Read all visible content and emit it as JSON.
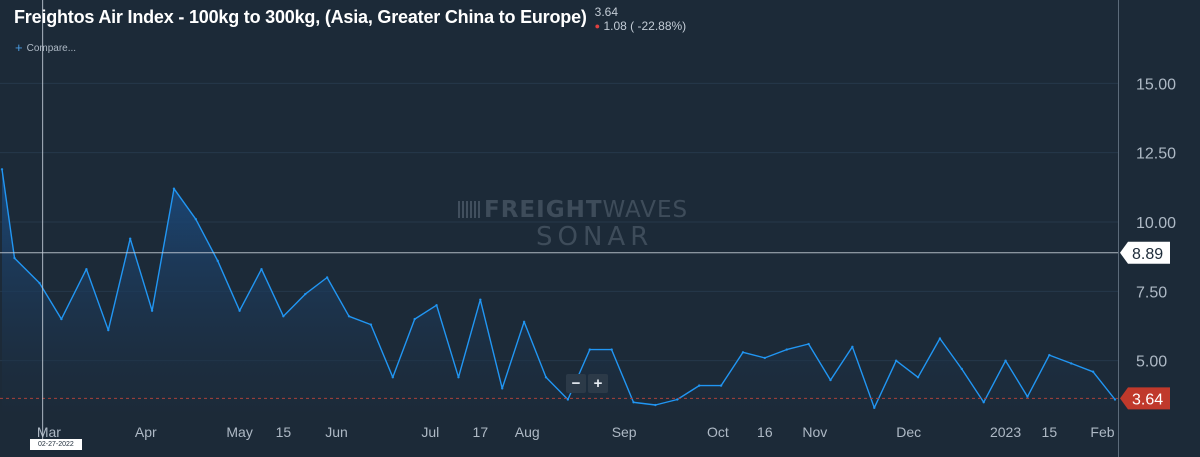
{
  "header": {
    "title": "Freightos Air Index - 100kg to 300kg, (Asia, Greater China to Europe)",
    "last_price": "3.64",
    "change": "1.08 ( -22.88%)",
    "compare_label": "Compare..."
  },
  "watermark": {
    "brand_bold": "FREIGHT",
    "brand_light": "WAVES",
    "product": "SONAR"
  },
  "controls": {
    "zoom_out": "−",
    "zoom_in": "+"
  },
  "crosshair": {
    "date_label": "02-27-2022",
    "value_label": "8.89"
  },
  "colors": {
    "background": "#1c2a38",
    "line": "#2196f3",
    "area_top": "#1b4a7e",
    "last_price_tag": "#c0392b",
    "gridline": "#26384a"
  },
  "chart_data": {
    "type": "area",
    "title": "Freightos Air Index - 100kg to 300kg, (Asia, Greater China to Europe)",
    "ylim": [
      2.5,
      17.5
    ],
    "y_ticks": [
      "5.00",
      "7.50",
      "10.00",
      "12.50",
      "15.00"
    ],
    "x_tick_labels": [
      "Mar",
      "Apr",
      "May",
      "15",
      "Jun",
      "Jul",
      "17",
      "Aug",
      "Sep",
      "Oct",
      "16",
      "Nov",
      "Dec",
      "2023",
      "15",
      "Feb"
    ],
    "x_tick_dates": [
      "2022-03-01",
      "2022-04-01",
      "2022-05-01",
      "2022-05-15",
      "2022-06-01",
      "2022-07-01",
      "2022-07-17",
      "2022-08-01",
      "2022-09-01",
      "2022-10-01",
      "2022-10-16",
      "2022-11-01",
      "2022-12-01",
      "2023-01-01",
      "2023-01-15",
      "2023-02-01"
    ],
    "last_value": "3.64",
    "series": [
      {
        "values": [
          [
            "2022-02-14",
            11.9
          ],
          [
            "2022-02-18",
            8.7
          ],
          [
            "2022-02-26",
            7.8
          ],
          [
            "2022-03-05",
            6.5
          ],
          [
            "2022-03-13",
            8.3
          ],
          [
            "2022-03-20",
            6.1
          ],
          [
            "2022-03-27",
            9.4
          ],
          [
            "2022-04-03",
            6.8
          ],
          [
            "2022-04-10",
            11.2
          ],
          [
            "2022-04-17",
            10.1
          ],
          [
            "2022-04-24",
            8.6
          ],
          [
            "2022-05-01",
            6.8
          ],
          [
            "2022-05-08",
            8.3
          ],
          [
            "2022-05-15",
            6.6
          ],
          [
            "2022-05-22",
            7.4
          ],
          [
            "2022-05-29",
            8.0
          ],
          [
            "2022-06-05",
            6.6
          ],
          [
            "2022-06-12",
            6.3
          ],
          [
            "2022-06-19",
            4.4
          ],
          [
            "2022-06-26",
            6.5
          ],
          [
            "2022-07-03",
            7.0
          ],
          [
            "2022-07-10",
            4.4
          ],
          [
            "2022-07-17",
            7.2
          ],
          [
            "2022-07-24",
            4.0
          ],
          [
            "2022-07-31",
            6.4
          ],
          [
            "2022-08-07",
            4.4
          ],
          [
            "2022-08-14",
            3.6
          ],
          [
            "2022-08-21",
            5.4
          ],
          [
            "2022-08-28",
            5.4
          ],
          [
            "2022-09-04",
            3.5
          ],
          [
            "2022-09-11",
            3.4
          ],
          [
            "2022-09-18",
            3.6
          ],
          [
            "2022-09-25",
            4.1
          ],
          [
            "2022-10-02",
            4.1
          ],
          [
            "2022-10-09",
            5.3
          ],
          [
            "2022-10-16",
            5.1
          ],
          [
            "2022-10-23",
            5.4
          ],
          [
            "2022-10-30",
            5.6
          ],
          [
            "2022-11-06",
            4.3
          ],
          [
            "2022-11-13",
            5.5
          ],
          [
            "2022-11-20",
            3.3
          ],
          [
            "2022-11-27",
            5.0
          ],
          [
            "2022-12-04",
            4.4
          ],
          [
            "2022-12-11",
            5.8
          ],
          [
            "2022-12-18",
            4.7
          ],
          [
            "2022-12-25",
            3.5
          ],
          [
            "2023-01-01",
            5.0
          ],
          [
            "2023-01-08",
            3.7
          ],
          [
            "2023-01-15",
            5.2
          ],
          [
            "2023-01-22",
            4.9
          ],
          [
            "2023-01-29",
            4.6
          ],
          [
            "2023-02-05",
            3.6
          ]
        ]
      }
    ]
  }
}
